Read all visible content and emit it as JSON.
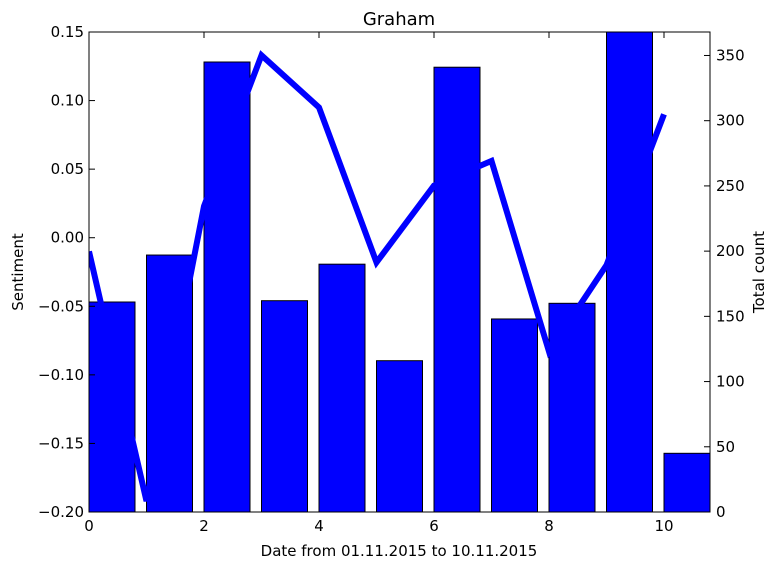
{
  "chart_data": {
    "type": "bar",
    "title": "Graham",
    "xlabel": "Date from 01.11.2015 to 10.11.2015",
    "ylabel_left": "Sentiment",
    "ylabel_right": "Total count",
    "xlim": [
      0,
      10.8
    ],
    "ylim_left": [
      -0.2,
      0.15
    ],
    "ylim_right": [
      0,
      368
    ],
    "x_ticks": [
      0,
      2,
      4,
      6,
      8,
      10
    ],
    "y_left_ticks": [
      -0.2,
      -0.15,
      -0.1,
      -0.05,
      0.0,
      0.05,
      0.1,
      0.15
    ],
    "y_right_ticks": [
      0,
      50,
      100,
      150,
      200,
      250,
      300,
      350
    ],
    "colors": {
      "bars": "#0000ff",
      "line": "#0000ff"
    },
    "grid": false,
    "series": [
      {
        "type": "bar",
        "axis": "right",
        "x": [
          0,
          1,
          2,
          3,
          4,
          5,
          6,
          7,
          8,
          9,
          10
        ],
        "bar_width": 0.8,
        "values": [
          161,
          197,
          345,
          162,
          190,
          116,
          341,
          148,
          160,
          368,
          45
        ]
      },
      {
        "type": "line",
        "axis": "left",
        "x": [
          0,
          1,
          2,
          3,
          4,
          5,
          6,
          7,
          8,
          9,
          10
        ],
        "values": [
          -0.01,
          -0.192,
          0.023,
          0.133,
          0.095,
          -0.018,
          0.038,
          0.056,
          -0.083,
          -0.02,
          0.09
        ]
      }
    ]
  }
}
